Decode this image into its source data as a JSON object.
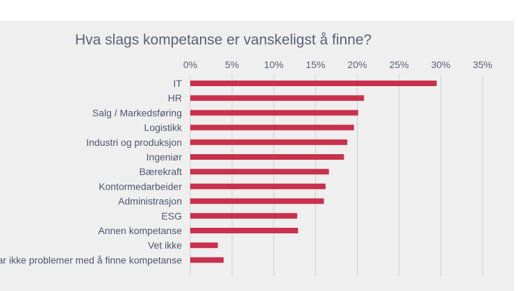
{
  "colors": {
    "bar": "#c8304c",
    "grid": "#cfcfcf",
    "panel": "#efefef",
    "text": "#5a5f78"
  },
  "chart_data": {
    "type": "bar",
    "orientation": "horizontal",
    "title": "Hva slags kompetanse er vanskeligst å finne?",
    "xlabel": "",
    "ylabel": "",
    "xlim": [
      0,
      35
    ],
    "x_axis_position": "top",
    "grid": true,
    "ticks": [
      "0%",
      "5%",
      "10%",
      "15%",
      "20%",
      "25%",
      "30%",
      "35%"
    ],
    "categories": [
      "IT",
      "HR",
      "Salg / Markedsføring",
      "Logistikk",
      "Industri og produksjon",
      "Ingeniør",
      "Bærekraft",
      "Kontormedarbeider",
      "Administrasjon",
      "ESG",
      "Annen kompetanse",
      "Vet ikke",
      "Har ikke problemer med å finne kompetanse"
    ],
    "values": [
      29.5,
      20.8,
      20.1,
      19.6,
      18.8,
      18.4,
      16.6,
      16.2,
      16.0,
      12.8,
      12.9,
      3.3,
      4.0
    ]
  }
}
